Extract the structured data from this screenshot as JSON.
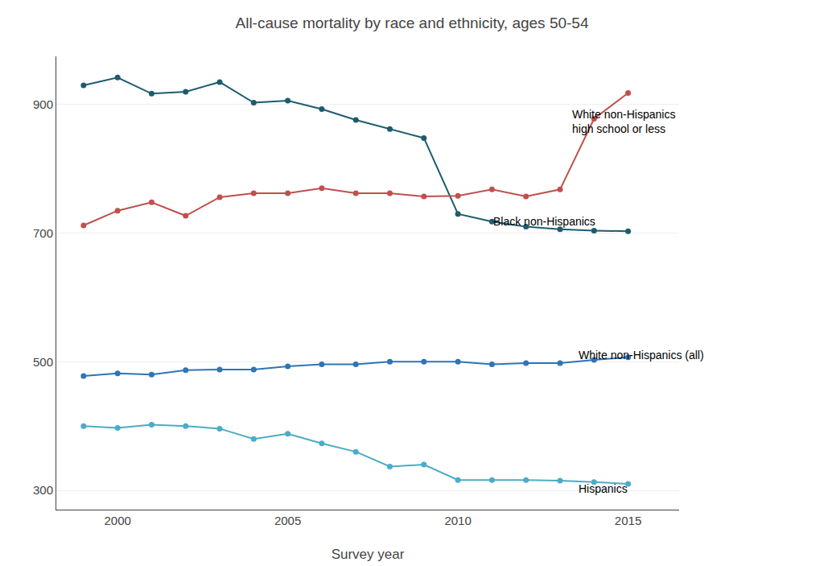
{
  "chart_data": {
    "type": "line",
    "title": "All-cause mortality by race and ethnicity, ages 50-54",
    "xlabel": "Survey year",
    "x": [
      1999,
      2000,
      2001,
      2002,
      2003,
      2004,
      2005,
      2006,
      2007,
      2008,
      2009,
      2010,
      2011,
      2012,
      2013,
      2014,
      2015
    ],
    "series": [
      {
        "color": "#1d5c6e",
        "values": [
          930,
          942,
          917,
          920,
          935,
          903,
          906,
          893,
          876,
          862,
          848,
          730,
          718,
          710,
          706,
          704,
          703
        ]
      },
      {
        "color": "#c0504d",
        "values": [
          712,
          735,
          748,
          727,
          756,
          762,
          762,
          770,
          762,
          762,
          757,
          758,
          768,
          757,
          768,
          878,
          918
        ]
      },
      {
        "color": "#2e75b6",
        "values": [
          478,
          482,
          480,
          487,
          488,
          488,
          493,
          496,
          496,
          500,
          500,
          500,
          496,
          498,
          498,
          503,
          507
        ]
      },
      {
        "color": "#4bacc6",
        "values": [
          400,
          397,
          402,
          400,
          396,
          380,
          388,
          373,
          360,
          337,
          340,
          316,
          316,
          316,
          315,
          313,
          310
        ]
      }
    ],
    "xlim": [
      1998.2,
      2016.5
    ],
    "xticks": [
      2000,
      2005,
      2010,
      2015
    ],
    "ylim": [
      270,
      975
    ],
    "yticks": [
      300,
      500,
      700,
      900
    ],
    "grid": true,
    "marker": "circle",
    "line_style": "solid",
    "annotations": [
      {
        "text": "White non-Hispanics\nhigh school or less",
        "x": 2013.3,
        "y": 873
      },
      {
        "text": "Black non-Hispanics",
        "x": 2011.0,
        "y": 718
      },
      {
        "text": "White non-Hispanics (all)",
        "x": 2013.5,
        "y": 510
      },
      {
        "text": "Hispanics",
        "x": 2013.5,
        "y": 303
      }
    ]
  }
}
